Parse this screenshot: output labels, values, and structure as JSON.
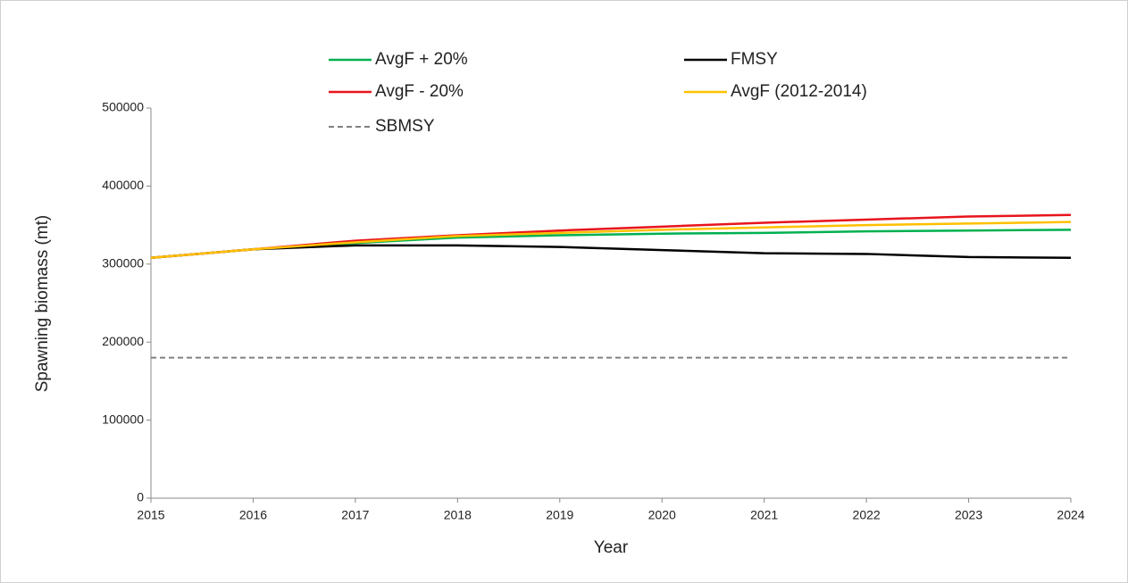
{
  "chart_data": {
    "type": "line",
    "x_label": "Year",
    "y_label": "Spawning biomass (mt)",
    "x": [
      2015,
      2016,
      2017,
      2018,
      2019,
      2020,
      2021,
      2022,
      2023,
      2024
    ],
    "xlim": [
      2015,
      2024
    ],
    "xticks": [
      2015,
      2016,
      2017,
      2018,
      2019,
      2020,
      2021,
      2022,
      2023,
      2024
    ],
    "ylim": [
      0,
      500000
    ],
    "yticks": [
      0,
      100000,
      200000,
      300000,
      400000,
      500000
    ],
    "grid": false,
    "series": [
      {
        "name": "AvgF + 20%",
        "color": "#00b050",
        "values": [
          308000,
          319000,
          327000,
          334000,
          337000,
          339000,
          340000,
          342000,
          343000,
          344000
        ]
      },
      {
        "name": "FMSY",
        "color": "#000000",
        "values": [
          308000,
          319000,
          324000,
          324000,
          322000,
          318000,
          314000,
          313000,
          309000,
          308000
        ]
      },
      {
        "name": "AvgF - 20%",
        "color": "#e8141c",
        "values": [
          308000,
          319000,
          330000,
          337000,
          343000,
          348000,
          353000,
          357000,
          361000,
          363000
        ]
      },
      {
        "name": "AvgF (2012-2014)",
        "color": "#ffc000",
        "values": [
          308000,
          319000,
          328000,
          336000,
          340000,
          344000,
          347000,
          350000,
          352000,
          354000
        ]
      },
      {
        "name": "SBMSY",
        "color": "#808080",
        "dashed": true,
        "values": [
          180000,
          180000,
          180000,
          180000,
          180000,
          180000,
          180000,
          180000,
          180000,
          180000
        ]
      }
    ]
  }
}
